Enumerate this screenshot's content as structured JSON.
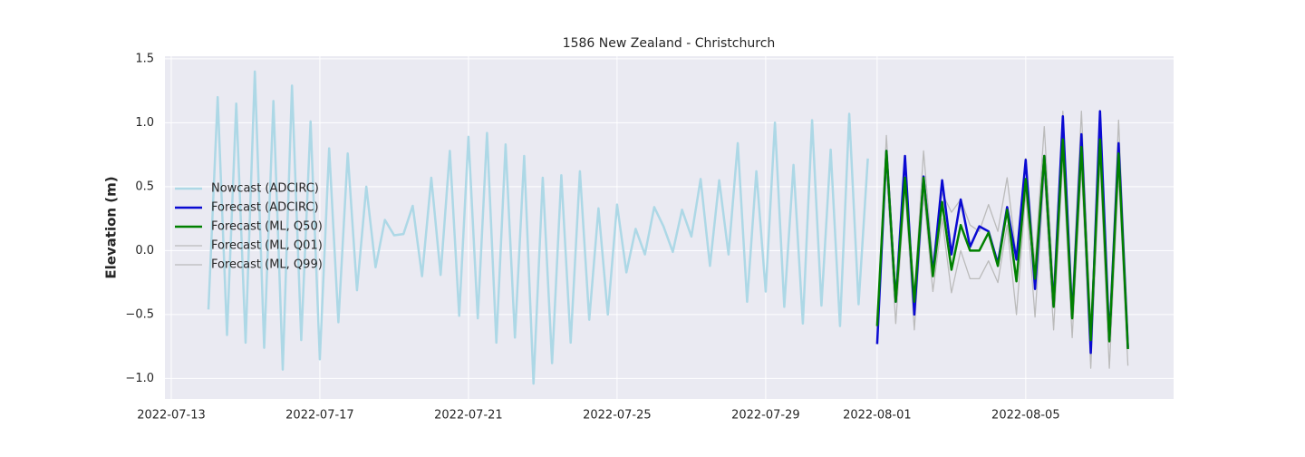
{
  "chart_data": {
    "type": "line",
    "title": "1586 New Zealand - Christchurch",
    "y_label": "Elevation (m)",
    "xlim": [
      -0.17,
      26.98
    ],
    "ylim": [
      -1.16,
      1.52
    ],
    "xticks": [
      {
        "value": 0,
        "label": "2022-07-13"
      },
      {
        "value": 4,
        "label": "2022-07-17"
      },
      {
        "value": 8,
        "label": "2022-07-21"
      },
      {
        "value": 12,
        "label": "2022-07-25"
      },
      {
        "value": 16,
        "label": "2022-07-29"
      },
      {
        "value": 19,
        "label": "2022-08-01"
      },
      {
        "value": 23,
        "label": "2022-08-05"
      }
    ],
    "yticks": [
      {
        "value": -1.0,
        "label": "−1.0"
      },
      {
        "value": -0.5,
        "label": "−0.5"
      },
      {
        "value": 0.0,
        "label": "0.0"
      },
      {
        "value": 0.5,
        "label": "0.5"
      },
      {
        "value": 1.0,
        "label": "1.0"
      },
      {
        "value": 1.5,
        "label": "1.5"
      }
    ],
    "grid": true,
    "legend": "center left",
    "series": [
      {
        "name": "Nowcast (ADCIRC)",
        "color": "#add8e6",
        "width": 2.5,
        "x": [
          1.0,
          1.25,
          1.5,
          1.75,
          2.0,
          2.25,
          2.5,
          2.75,
          3.0,
          3.25,
          3.5,
          3.75,
          4.0,
          4.25,
          4.5,
          4.75,
          5.0,
          5.25,
          5.5,
          5.75,
          6.0,
          6.25,
          6.5,
          6.75,
          7.0,
          7.25,
          7.5,
          7.75,
          8.0,
          8.25,
          8.5,
          8.75,
          9.0,
          9.25,
          9.5,
          9.75,
          10.0,
          10.25,
          10.5,
          10.75,
          11.0,
          11.25,
          11.5,
          11.75,
          12.0,
          12.25,
          12.5,
          12.75,
          13.0,
          13.25,
          13.5,
          13.75,
          14.0,
          14.25,
          14.5,
          14.75,
          15.0,
          15.25,
          15.5,
          15.75,
          16.0,
          16.25,
          16.5,
          16.75,
          17.0,
          17.25,
          17.5,
          17.75,
          18.0,
          18.25,
          18.5,
          18.75
        ],
        "values": [
          -0.46,
          1.2,
          -0.66,
          1.15,
          -0.72,
          1.4,
          -0.76,
          1.17,
          -0.93,
          1.29,
          -0.7,
          1.01,
          -0.85,
          0.8,
          -0.56,
          0.76,
          -0.31,
          0.5,
          -0.13,
          0.24,
          0.12,
          0.13,
          0.35,
          -0.2,
          0.57,
          -0.19,
          0.78,
          -0.51,
          0.89,
          -0.53,
          0.92,
          -0.72,
          0.83,
          -0.68,
          0.74,
          -1.04,
          0.57,
          -0.88,
          0.59,
          -0.72,
          0.62,
          -0.54,
          0.33,
          -0.5,
          0.36,
          -0.17,
          0.17,
          -0.03,
          0.34,
          0.19,
          -0.01,
          0.32,
          0.11,
          0.56,
          -0.12,
          0.55,
          -0.03,
          0.84,
          -0.4,
          0.62,
          -0.32,
          1.0,
          -0.44,
          0.67,
          -0.57,
          1.02,
          -0.43,
          0.79,
          -0.59,
          1.07,
          -0.42,
          0.72
        ]
      },
      {
        "name": "Forecast (ADCIRC)",
        "color": "#0a0ad2",
        "width": 2.5,
        "x": [
          19.0,
          19.25,
          19.5,
          19.75,
          20.0,
          20.25,
          20.5,
          20.75,
          21.0,
          21.25,
          21.5,
          21.75,
          22.0,
          22.25,
          22.5,
          22.75,
          23.0,
          23.25,
          23.5,
          23.75,
          24.0,
          24.25,
          24.5,
          24.75,
          25.0,
          25.25,
          25.5,
          25.75
        ],
        "values": [
          -0.73,
          0.78,
          -0.4,
          0.74,
          -0.5,
          0.58,
          -0.18,
          0.55,
          -0.03,
          0.4,
          0.03,
          0.19,
          0.15,
          -0.1,
          0.34,
          -0.07,
          0.71,
          -0.3,
          0.74,
          -0.43,
          1.05,
          -0.52,
          0.91,
          -0.8,
          1.09,
          -0.7,
          0.84,
          -0.76
        ]
      },
      {
        "name": "Forecast (ML, Q50)",
        "color": "#008000",
        "width": 2.5,
        "x": [
          19.0,
          19.25,
          19.5,
          19.75,
          20.0,
          20.25,
          20.5,
          20.75,
          21.0,
          21.25,
          21.5,
          21.75,
          22.0,
          22.25,
          22.5,
          22.75,
          23.0,
          23.25,
          23.5,
          23.75,
          24.0,
          24.25,
          24.5,
          24.75,
          25.0,
          25.25,
          25.5,
          25.75
        ],
        "values": [
          -0.59,
          0.78,
          -0.4,
          0.57,
          -0.4,
          0.57,
          -0.2,
          0.38,
          -0.15,
          0.2,
          0.0,
          0.0,
          0.14,
          -0.12,
          0.32,
          -0.24,
          0.56,
          -0.22,
          0.74,
          -0.44,
          0.87,
          -0.53,
          0.81,
          -0.7,
          0.87,
          -0.71,
          0.76,
          -0.77
        ]
      },
      {
        "name": "Forecast (ML, Q01)",
        "color": "#bbbbbb",
        "width": 1.3,
        "x": [
          19.0,
          19.25,
          19.5,
          19.75,
          20.0,
          20.25,
          20.5,
          20.75,
          21.0,
          21.25,
          21.5,
          21.75,
          22.0,
          22.25,
          22.5,
          22.75,
          23.0,
          23.25,
          23.5,
          23.75,
          24.0,
          24.25,
          24.5,
          24.75,
          25.0,
          25.25,
          25.5,
          25.75
        ],
        "values": [
          -0.6,
          0.65,
          -0.57,
          0.5,
          -0.62,
          0.45,
          -0.32,
          0.25,
          -0.33,
          0.0,
          -0.22,
          -0.22,
          -0.08,
          -0.25,
          0.2,
          -0.5,
          0.45,
          -0.52,
          0.6,
          -0.62,
          0.7,
          -0.68,
          0.65,
          -0.92,
          0.7,
          -0.92,
          0.6,
          -0.9
        ]
      },
      {
        "name": "Forecast (ML, Q99)",
        "color": "#bbbbbb",
        "width": 1.3,
        "x": [
          19.0,
          19.25,
          19.5,
          19.75,
          20.0,
          20.25,
          20.5,
          20.75,
          21.0,
          21.25,
          21.5,
          21.75,
          22.0,
          22.25,
          22.5,
          22.75,
          23.0,
          23.25,
          23.5,
          23.75,
          24.0,
          24.25,
          24.5,
          24.75,
          25.0,
          25.25,
          25.5,
          25.75
        ],
        "values": [
          -0.55,
          0.9,
          -0.35,
          0.7,
          -0.35,
          0.78,
          -0.1,
          0.45,
          0.3,
          0.4,
          0.2,
          0.15,
          0.36,
          0.15,
          0.57,
          -0.05,
          0.72,
          -0.1,
          0.97,
          -0.3,
          1.09,
          -0.4,
          1.09,
          -0.6,
          1.02,
          -0.65,
          1.02,
          -0.65
        ]
      }
    ]
  }
}
